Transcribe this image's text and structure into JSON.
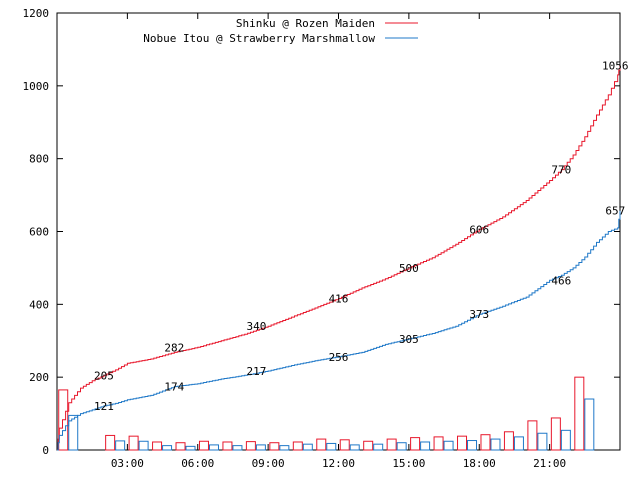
{
  "chart_data": {
    "type": "line",
    "title": "",
    "xlabel": "",
    "ylabel": "",
    "ylim": [
      0,
      1200
    ],
    "yticks": [
      0,
      200,
      400,
      600,
      800,
      1000,
      1200
    ],
    "xticks": [
      {
        "label": "03:00",
        "hour": 3
      },
      {
        "label": "06:00",
        "hour": 6
      },
      {
        "label": "09:00",
        "hour": 9
      },
      {
        "label": "12:00",
        "hour": 12
      },
      {
        "label": "15:00",
        "hour": 15
      },
      {
        "label": "18:00",
        "hour": 18
      },
      {
        "label": "21:00",
        "hour": 21
      }
    ],
    "xlim_hours": [
      0,
      24
    ],
    "legend_position": "top-right",
    "series": [
      {
        "name": "Shinku @ Rozen Maiden",
        "color": "#e8172b",
        "cumulative": [
          [
            0.0,
            0
          ],
          [
            0.1,
            60
          ],
          [
            0.5,
            130
          ],
          [
            1.0,
            170
          ],
          [
            1.5,
            190
          ],
          [
            2.0,
            205
          ],
          [
            2.5,
            220
          ],
          [
            3.0,
            238
          ],
          [
            4.0,
            250
          ],
          [
            5.0,
            268
          ],
          [
            6.0,
            282
          ],
          [
            7.0,
            300
          ],
          [
            8.0,
            318
          ],
          [
            9.0,
            340
          ],
          [
            10.0,
            365
          ],
          [
            11.0,
            390
          ],
          [
            12.0,
            416
          ],
          [
            13.0,
            445
          ],
          [
            14.0,
            470
          ],
          [
            15.0,
            500
          ],
          [
            16.0,
            528
          ],
          [
            17.0,
            565
          ],
          [
            18.0,
            606
          ],
          [
            19.0,
            640
          ],
          [
            20.0,
            685
          ],
          [
            21.0,
            740
          ],
          [
            21.5,
            770
          ],
          [
            22.0,
            810
          ],
          [
            22.5,
            860
          ],
          [
            23.0,
            920
          ],
          [
            23.5,
            975
          ],
          [
            23.9,
            1030
          ],
          [
            24.0,
            1056
          ]
        ],
        "labels": [
          {
            "hour": 2.0,
            "value": 205
          },
          {
            "hour": 5.0,
            "value": 282
          },
          {
            "hour": 8.5,
            "value": 340
          },
          {
            "hour": 12.0,
            "value": 416
          },
          {
            "hour": 15.0,
            "value": 500
          },
          {
            "hour": 18.0,
            "value": 606
          },
          {
            "hour": 21.5,
            "value": 770
          },
          {
            "hour": 23.8,
            "value": 1056
          }
        ],
        "hourly_counts": [
          165,
          0,
          40,
          38,
          22,
          20,
          24,
          22,
          23,
          20,
          22,
          30,
          28,
          24,
          30,
          34,
          36,
          38,
          42,
          50,
          80,
          88,
          200
        ]
      },
      {
        "name": "Nobue Itou @ Strawberry Marshmallow",
        "color": "#1f78c8",
        "cumulative": [
          [
            0.0,
            0
          ],
          [
            0.1,
            40
          ],
          [
            0.5,
            80
          ],
          [
            1.0,
            100
          ],
          [
            1.5,
            110
          ],
          [
            2.0,
            121
          ],
          [
            2.5,
            128
          ],
          [
            3.0,
            138
          ],
          [
            4.0,
            150
          ],
          [
            5.0,
            174
          ],
          [
            6.0,
            182
          ],
          [
            7.0,
            195
          ],
          [
            8.0,
            205
          ],
          [
            9.0,
            217
          ],
          [
            10.0,
            232
          ],
          [
            11.0,
            245
          ],
          [
            12.0,
            256
          ],
          [
            13.0,
            268
          ],
          [
            14.0,
            290
          ],
          [
            15.0,
            305
          ],
          [
            16.0,
            320
          ],
          [
            17.0,
            340
          ],
          [
            18.0,
            373
          ],
          [
            19.0,
            395
          ],
          [
            20.0,
            420
          ],
          [
            21.0,
            466
          ],
          [
            21.5,
            480
          ],
          [
            22.0,
            500
          ],
          [
            22.5,
            530
          ],
          [
            23.0,
            570
          ],
          [
            23.5,
            600
          ],
          [
            23.9,
            610
          ],
          [
            24.0,
            657
          ]
        ],
        "labels": [
          {
            "hour": 2.0,
            "value": 121
          },
          {
            "hour": 5.0,
            "value": 174
          },
          {
            "hour": 8.5,
            "value": 217
          },
          {
            "hour": 12.0,
            "value": 256
          },
          {
            "hour": 15.0,
            "value": 305
          },
          {
            "hour": 18.0,
            "value": 373
          },
          {
            "hour": 21.5,
            "value": 466
          },
          {
            "hour": 23.8,
            "value": 657
          }
        ],
        "hourly_counts": [
          95,
          0,
          25,
          24,
          12,
          10,
          14,
          12,
          14,
          12,
          16,
          18,
          14,
          16,
          20,
          22,
          24,
          26,
          30,
          36,
          46,
          54,
          140
        ]
      }
    ]
  }
}
